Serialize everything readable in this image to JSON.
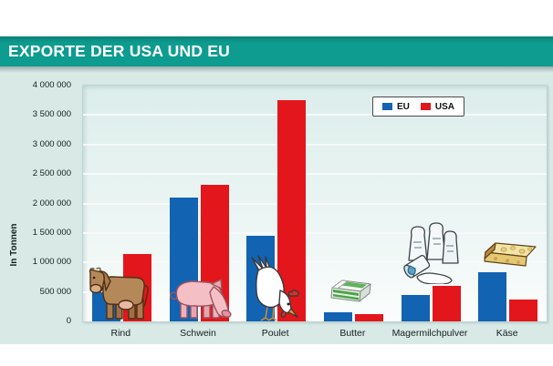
{
  "header": {
    "title": "EXPORTE DER USA UND EU"
  },
  "chart_data": {
    "type": "bar",
    "title": "EXPORTE DER USA UND EU",
    "ylabel": "In Tonnen",
    "ylim": [
      0,
      4000000
    ],
    "ytick_interval": 500000,
    "ytick_labels": [
      "0",
      "500 000",
      "1 000 000",
      "1 500 000",
      "2 000 000",
      "2 500 000",
      "3 000 000",
      "3 500 000",
      "4 000 000"
    ],
    "grid": true,
    "legend_position": "top-right",
    "categories": [
      "Rind",
      "Schwein",
      "Poulet",
      "Butter",
      "Magermilchpulver",
      "Käse"
    ],
    "category_icons": [
      "cow-icon",
      "pig-icon",
      "chicken-icon",
      "butter-icon",
      "milk-powder-icon",
      "cheese-icon"
    ],
    "series": [
      {
        "name": "EU",
        "color": "#1263b2",
        "values": [
          500000,
          2100000,
          1450000,
          150000,
          450000,
          830000
        ]
      },
      {
        "name": "USA",
        "color": "#e3161c",
        "values": [
          1150000,
          2320000,
          3750000,
          120000,
          600000,
          370000
        ]
      }
    ]
  }
}
